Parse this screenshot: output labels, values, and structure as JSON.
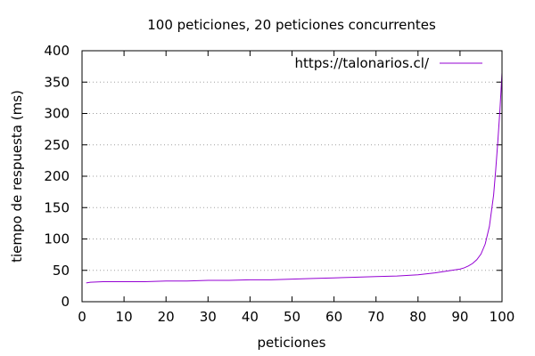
{
  "chart_data": {
    "type": "line",
    "title": "100 peticiones, 20 peticiones concurrentes",
    "xlabel": "peticiones",
    "ylabel": "tiempo de respuesta (ms)",
    "xlim": [
      0,
      100
    ],
    "ylim": [
      0,
      400
    ],
    "xticks": [
      0,
      10,
      20,
      30,
      40,
      50,
      60,
      70,
      80,
      90,
      100
    ],
    "yticks": [
      0,
      50,
      100,
      150,
      200,
      250,
      300,
      350,
      400
    ],
    "grid": "horizontal dotted",
    "legend_position": "top-right",
    "series": [
      {
        "name": "https://talonarios.cl/",
        "color": "#9400d3",
        "x": [
          1,
          2,
          5,
          10,
          15,
          20,
          25,
          30,
          35,
          40,
          45,
          50,
          55,
          60,
          65,
          70,
          75,
          80,
          84,
          87,
          90,
          91,
          92,
          93,
          94,
          95,
          96,
          97,
          97.5,
          98,
          98.5,
          99,
          99.5,
          100
        ],
        "y": [
          30,
          31,
          32,
          32,
          32,
          33,
          33,
          34,
          34,
          35,
          35,
          36,
          37,
          38,
          39,
          40,
          41,
          43,
          46,
          49,
          52,
          54,
          57,
          61,
          67,
          76,
          92,
          120,
          145,
          170,
          210,
          255,
          305,
          365
        ]
      }
    ]
  }
}
